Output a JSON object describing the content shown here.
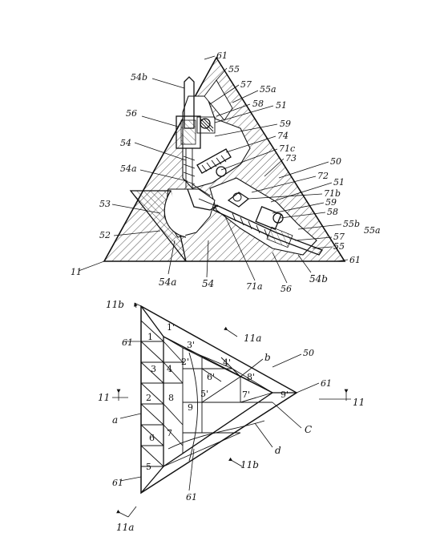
{
  "fig_top": {
    "labels": [
      {
        "id": "l61a",
        "text": "61"
      },
      {
        "id": "l55a",
        "text": "55"
      },
      {
        "id": "l54b",
        "text": "54b"
      },
      {
        "id": "l57",
        "text": "57"
      },
      {
        "id": "l55a2",
        "text": "55a"
      },
      {
        "id": "l56",
        "text": "56"
      },
      {
        "id": "l58",
        "text": "58"
      },
      {
        "id": "l51",
        "text": "51"
      },
      {
        "id": "l59",
        "text": "59"
      },
      {
        "id": "l74",
        "text": "74"
      },
      {
        "id": "l54",
        "text": "54"
      },
      {
        "id": "l71c",
        "text": "71c"
      },
      {
        "id": "l73",
        "text": "73"
      },
      {
        "id": "l54a",
        "text": "54a"
      },
      {
        "id": "l50",
        "text": "50"
      },
      {
        "id": "l72",
        "text": "72"
      },
      {
        "id": "l51b",
        "text": "51"
      },
      {
        "id": "l53",
        "text": "53"
      },
      {
        "id": "l71b",
        "text": "71b"
      },
      {
        "id": "l59b",
        "text": "59"
      },
      {
        "id": "l58b",
        "text": "58"
      },
      {
        "id": "l55b",
        "text": "55b"
      },
      {
        "id": "l55a3",
        "text": "55a"
      },
      {
        "id": "l52",
        "text": "52"
      },
      {
        "id": "l57b",
        "text": "57"
      },
      {
        "id": "l55c",
        "text": "55"
      },
      {
        "id": "l61b",
        "text": "61"
      },
      {
        "id": "l11",
        "text": "11"
      },
      {
        "id": "l54a2",
        "text": "54a"
      },
      {
        "id": "l54c",
        "text": "54"
      },
      {
        "id": "l71a",
        "text": "71a"
      },
      {
        "id": "l56b",
        "text": "56"
      },
      {
        "id": "l54b2",
        "text": "54b"
      }
    ]
  },
  "fig_bottom": {
    "labels": [
      {
        "id": "s11b",
        "text": "11b"
      },
      {
        "id": "s11a",
        "text": "11a"
      },
      {
        "id": "sb",
        "text": "b"
      },
      {
        "id": "s50",
        "text": "50"
      },
      {
        "id": "s61a",
        "text": "61"
      },
      {
        "id": "s61b",
        "text": "61"
      },
      {
        "id": "s11l",
        "text": "11"
      },
      {
        "id": "s11r",
        "text": "11"
      },
      {
        "id": "sa",
        "text": "a"
      },
      {
        "id": "sC",
        "text": "C"
      },
      {
        "id": "sd",
        "text": "d"
      },
      {
        "id": "s11b2",
        "text": "11b"
      },
      {
        "id": "s61c",
        "text": "61"
      },
      {
        "id": "s61d",
        "text": "61"
      },
      {
        "id": "s11a2",
        "text": "11a"
      }
    ],
    "cells": [
      "1",
      "1'",
      "3'",
      "3",
      "4",
      "2'",
      "4'",
      "2",
      "8",
      "6'",
      "8'",
      "5'",
      "7'",
      "9'",
      "9",
      "6",
      "7",
      "5"
    ]
  }
}
